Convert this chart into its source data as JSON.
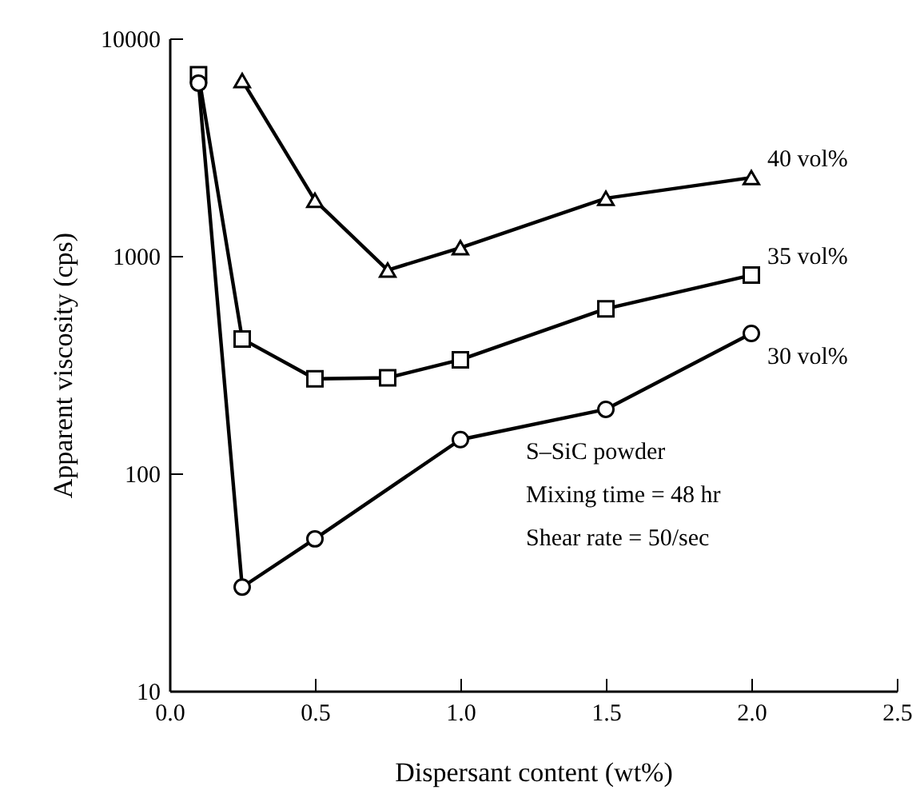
{
  "chart_data": {
    "type": "line",
    "xlabel": "Dispersant content (wt%)",
    "ylabel": "Apparent viscosity (cps)",
    "log": "y",
    "xlim": [
      0,
      2.5
    ],
    "xticks": [
      {
        "value": 0,
        "label": "0.0"
      },
      {
        "value": 0.5,
        "label": "0.5"
      },
      {
        "value": 1,
        "label": "1.0"
      },
      {
        "value": 1.5,
        "label": "1.5"
      },
      {
        "value": 2,
        "label": "2.0"
      },
      {
        "value": 2.5,
        "label": "2.5"
      }
    ],
    "ylim": [
      10,
      10000
    ],
    "yticks": [
      10,
      100,
      1000,
      10000
    ],
    "grid": false,
    "line_style": "solid",
    "series": [
      {
        "name": "40 vol%",
        "color": "#000000",
        "marker": "triangle",
        "x": [
          0.25,
          0.5,
          0.75,
          1.0,
          1.5,
          2.0
        ],
        "values": [
          6400,
          1800,
          860,
          1090,
          1840,
          2290
        ]
      },
      {
        "name": "35 vol%",
        "color": "#000000",
        "marker": "square",
        "x": [
          0.1,
          0.25,
          0.5,
          0.75,
          1.0,
          1.5,
          2.0
        ],
        "values": [
          6800,
          415,
          272,
          275,
          333,
          571,
          816
        ]
      },
      {
        "name": "30 vol%",
        "color": "#000000",
        "marker": "circle",
        "x": [
          0.1,
          0.25,
          0.5,
          1.0,
          1.5,
          2.0
        ],
        "values": [
          6230,
          30,
          50,
          143,
          197,
          440
        ]
      }
    ],
    "annotations": [
      "S–SiC powder",
      "Mixing time = 48 hr",
      "Shear rate = 50/sec"
    ]
  }
}
